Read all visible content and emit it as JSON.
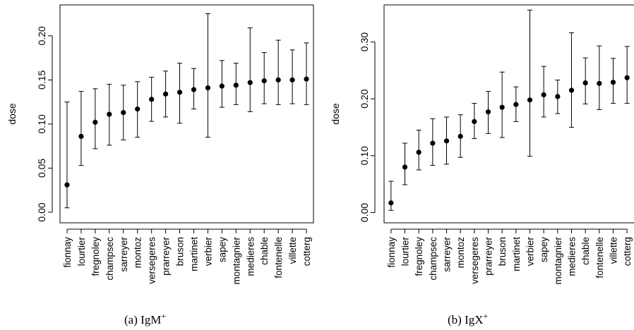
{
  "chart_data": [
    {
      "type": "scatter",
      "subtype": "point-with-error-bars",
      "caption": "(a) IgM",
      "caption_sup": "+",
      "ylabel": "dose",
      "xlabel": "",
      "ylim": [
        -0.012,
        0.235
      ],
      "yticks": [
        "0.00",
        "0.05",
        "0.10",
        "0.15",
        "0.20"
      ],
      "categories": [
        "fionnay",
        "lourtier",
        "fregnoley",
        "champsec",
        "sarreyer",
        "montoz",
        "versegeres",
        "prarreyer",
        "bruson",
        "martinet",
        "verbier",
        "sapey",
        "montagnier",
        "medieres",
        "chable",
        "fontenelle",
        "villette",
        "cotterg"
      ],
      "values": [
        0.031,
        0.086,
        0.102,
        0.111,
        0.113,
        0.117,
        0.128,
        0.134,
        0.136,
        0.139,
        0.141,
        0.143,
        0.144,
        0.147,
        0.149,
        0.15,
        0.15,
        0.151
      ],
      "lower": [
        0.005,
        0.053,
        0.072,
        0.076,
        0.082,
        0.085,
        0.103,
        0.108,
        0.101,
        0.117,
        0.085,
        0.119,
        0.122,
        0.114,
        0.123,
        0.122,
        0.123,
        0.122
      ],
      "upper": [
        0.125,
        0.137,
        0.14,
        0.145,
        0.144,
        0.148,
        0.153,
        0.16,
        0.169,
        0.163,
        0.225,
        0.172,
        0.169,
        0.209,
        0.181,
        0.195,
        0.184,
        0.192
      ],
      "grid": false
    },
    {
      "type": "scatter",
      "subtype": "point-with-error-bars",
      "caption": "(b) IgX",
      "caption_sup": "+",
      "ylabel": "dose",
      "xlabel": "",
      "ylim": [
        -0.018,
        0.365
      ],
      "yticks": [
        "0.00",
        "0.10",
        "0.20",
        "0.30"
      ],
      "categories": [
        "fionnay",
        "lourtier",
        "fregnoley",
        "champsec",
        "sarreyer",
        "montoz",
        "versegeres",
        "prarreyer",
        "bruson",
        "martinet",
        "verbier",
        "sapey",
        "montagnier",
        "medieres",
        "chable",
        "fontenelle",
        "villette",
        "cotterg"
      ],
      "values": [
        0.017,
        0.08,
        0.106,
        0.122,
        0.126,
        0.134,
        0.16,
        0.177,
        0.185,
        0.19,
        0.198,
        0.207,
        0.204,
        0.215,
        0.228,
        0.227,
        0.229,
        0.237
      ],
      "lower": [
        0.004,
        0.049,
        0.075,
        0.083,
        0.085,
        0.097,
        0.13,
        0.139,
        0.132,
        0.16,
        0.099,
        0.168,
        0.174,
        0.15,
        0.191,
        0.181,
        0.192,
        0.192
      ],
      "upper": [
        0.055,
        0.122,
        0.145,
        0.165,
        0.168,
        0.172,
        0.192,
        0.213,
        0.247,
        0.221,
        0.356,
        0.257,
        0.233,
        0.316,
        0.272,
        0.293,
        0.271,
        0.292
      ],
      "grid": false
    }
  ]
}
